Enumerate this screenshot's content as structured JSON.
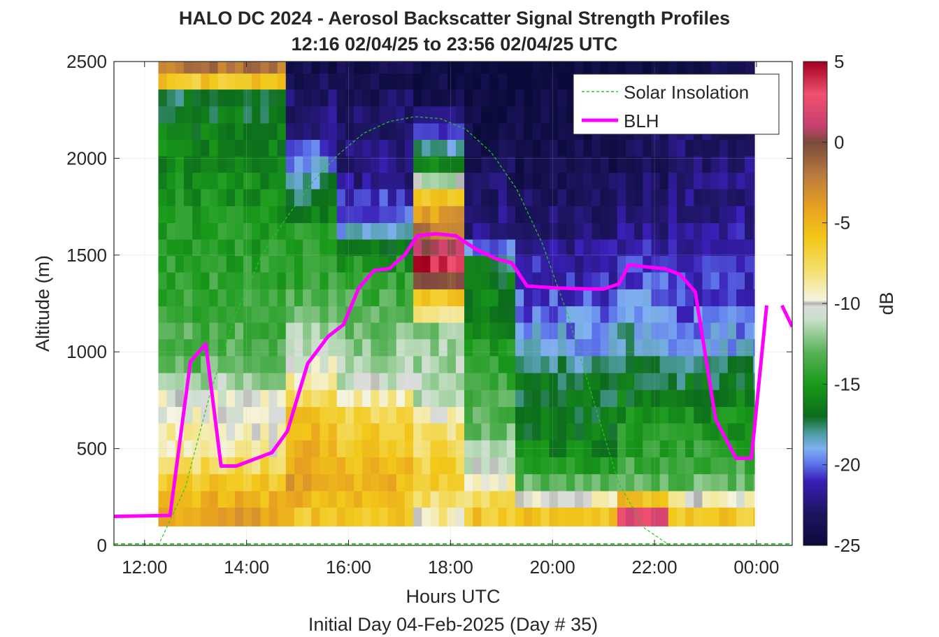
{
  "chart_data": {
    "type": "heatmap",
    "title": "HALO DC 2024 - Aerosol Backscatter Signal Strength Profiles",
    "subtitle": "12:16 02/04/25 to 23:56 02/04/25  UTC",
    "xlabel": "Hours UTC",
    "xlabel2": "Initial Day 04-Feb-2025 (Day # 35)",
    "ylabel": "Altitude (m)",
    "colorbar_label": "dB",
    "xlim": [
      11.4,
      24.7
    ],
    "ylim": [
      0,
      2500
    ],
    "x_ticks": [
      12,
      14,
      16,
      18,
      20,
      22,
      24
    ],
    "x_tick_labels": [
      "12:00",
      "14:00",
      "16:00",
      "18:00",
      "20:00",
      "22:00",
      "00:00"
    ],
    "y_ticks": [
      0,
      500,
      1000,
      1500,
      2000,
      2500
    ],
    "y_tick_labels": [
      "0",
      "500",
      "1000",
      "1500",
      "2000",
      "2500"
    ],
    "colorbar_ticks": [
      5,
      0,
      -5,
      -10,
      -15,
      -20,
      -25
    ],
    "colorbar_tick_labels": [
      "5",
      "0",
      "-5",
      "-10",
      "-15",
      "-20",
      "-25"
    ],
    "colorbar_range": [
      -25,
      5
    ],
    "colormap_stops": [
      {
        "v": -25,
        "c": "#0b0b3b"
      },
      {
        "v": -23,
        "c": "#1d1560"
      },
      {
        "v": -21,
        "c": "#3a1fb8"
      },
      {
        "v": -20,
        "c": "#5a70e8"
      },
      {
        "v": -19,
        "c": "#7fb0f0"
      },
      {
        "v": -18,
        "c": "#4a9a9a"
      },
      {
        "v": -17,
        "c": "#0c6c1c"
      },
      {
        "v": -15,
        "c": "#1a9a1a"
      },
      {
        "v": -13,
        "c": "#59b259"
      },
      {
        "v": -11,
        "c": "#c8e0c8"
      },
      {
        "v": -10.2,
        "c": "#dcdcdc"
      },
      {
        "v": -10,
        "c": "#b0b0b0"
      },
      {
        "v": -9.8,
        "c": "#f4f4e0"
      },
      {
        "v": -8,
        "c": "#f4e070"
      },
      {
        "v": -6,
        "c": "#f2c81a"
      },
      {
        "v": -4,
        "c": "#e8a020"
      },
      {
        "v": -2,
        "c": "#b87a40"
      },
      {
        "v": 0,
        "c": "#7a4a3a"
      },
      {
        "v": 1,
        "c": "#c84070"
      },
      {
        "v": 3,
        "c": "#f05070"
      },
      {
        "v": 5,
        "c": "#a0001c"
      }
    ],
    "time_bin_hours": 0.1667,
    "altitude_bins_m": [
      155,
      240,
      325,
      415,
      500,
      590,
      675,
      760,
      850,
      935,
      1025,
      1110,
      1195,
      1280,
      1370,
      1455,
      1540,
      1625,
      1710,
      1800,
      1885,
      1970,
      2055,
      2140,
      2225,
      2315,
      2400,
      2480
    ],
    "profiles": [
      {
        "t0": 12.27,
        "t1": 14.77,
        "levels": [
          [
            155,
            -4
          ],
          [
            325,
            -6
          ],
          [
            500,
            -9
          ],
          [
            760,
            -10
          ],
          [
            935,
            -13
          ],
          [
            1280,
            -14
          ],
          [
            1710,
            -15
          ],
          [
            2055,
            -16
          ],
          [
            2315,
            -17
          ],
          [
            2400,
            -6
          ],
          [
            2480,
            -2
          ]
        ]
      },
      {
        "t0": 14.77,
        "t1": 15.77,
        "levels": [
          [
            155,
            -6
          ],
          [
            325,
            -4
          ],
          [
            675,
            -6
          ],
          [
            850,
            -9
          ],
          [
            1025,
            -11
          ],
          [
            1370,
            -14
          ],
          [
            1625,
            -15
          ],
          [
            1885,
            -18
          ],
          [
            2140,
            -22
          ],
          [
            2480,
            -24
          ]
        ]
      },
      {
        "t0": 15.77,
        "t1": 17.27,
        "levels": [
          [
            155,
            -6
          ],
          [
            325,
            -5
          ],
          [
            675,
            -7
          ],
          [
            850,
            -11
          ],
          [
            1195,
            -13
          ],
          [
            1455,
            -15
          ],
          [
            1625,
            -19
          ],
          [
            1885,
            -22
          ],
          [
            2225,
            -23
          ],
          [
            2480,
            -24
          ]
        ]
      },
      {
        "t0": 17.27,
        "t1": 18.27,
        "levels": [
          [
            155,
            -9
          ],
          [
            325,
            -6
          ],
          [
            590,
            -8
          ],
          [
            760,
            -11
          ],
          [
            1110,
            -12
          ],
          [
            1280,
            -6
          ],
          [
            1455,
            4
          ],
          [
            1625,
            -2
          ],
          [
            1800,
            -6
          ],
          [
            1970,
            -16
          ],
          [
            2225,
            -23
          ],
          [
            2480,
            -25
          ]
        ]
      },
      {
        "t0": 18.27,
        "t1": 19.27,
        "levels": [
          [
            155,
            -6
          ],
          [
            325,
            -9
          ],
          [
            500,
            -12
          ],
          [
            850,
            -14
          ],
          [
            1195,
            -16
          ],
          [
            1455,
            -17
          ],
          [
            1625,
            -22
          ],
          [
            2055,
            -24
          ],
          [
            2480,
            -25
          ]
        ]
      },
      {
        "t0": 19.27,
        "t1": 21.27,
        "levels": [
          [
            155,
            -6
          ],
          [
            325,
            -13
          ],
          [
            500,
            -16
          ],
          [
            850,
            -17
          ],
          [
            1025,
            -19
          ],
          [
            1195,
            -20
          ],
          [
            1370,
            -21
          ],
          [
            1710,
            -23
          ],
          [
            2055,
            -24
          ],
          [
            2480,
            -25
          ]
        ]
      },
      {
        "t0": 21.27,
        "t1": 22.27,
        "levels": [
          [
            155,
            2
          ],
          [
            325,
            -13
          ],
          [
            590,
            -15
          ],
          [
            850,
            -17
          ],
          [
            1025,
            -18
          ],
          [
            1195,
            -19
          ],
          [
            1455,
            -21
          ],
          [
            1800,
            -23
          ],
          [
            2480,
            -24
          ]
        ]
      },
      {
        "t0": 22.27,
        "t1": 23.96,
        "levels": [
          [
            155,
            -6
          ],
          [
            325,
            -13
          ],
          [
            590,
            -15
          ],
          [
            850,
            -17
          ],
          [
            1025,
            -19
          ],
          [
            1195,
            -20
          ],
          [
            1370,
            -21
          ],
          [
            1710,
            -22
          ],
          [
            2140,
            -23
          ],
          [
            2480,
            -24
          ]
        ]
      }
    ],
    "series": [
      {
        "name": "Solar Insolation",
        "style": "dashed",
        "color": "#22cc22",
        "x": [
          11.4,
          12.27,
          12.8,
          13.3,
          13.8,
          14.3,
          14.8,
          15.3,
          15.8,
          16.3,
          16.8,
          17.3,
          17.8,
          18.3,
          18.8,
          19.3,
          19.8,
          20.3,
          20.8,
          21.3,
          21.8,
          22.3,
          22.4,
          24.7
        ],
        "y": [
          0,
          0,
          300,
          800,
          1200,
          1500,
          1700,
          1880,
          2020,
          2130,
          2190,
          2215,
          2205,
          2150,
          2030,
          1840,
          1560,
          1190,
          750,
          320,
          90,
          0,
          0,
          0
        ]
      },
      {
        "name": "BLH",
        "style": "solid",
        "color": "#ff00ff",
        "x": [
          11.4,
          12.5,
          12.9,
          13.2,
          13.5,
          13.8,
          14.2,
          14.5,
          14.8,
          15.2,
          15.6,
          15.9,
          16.2,
          16.5,
          16.8,
          17.1,
          17.35,
          17.7,
          18.1,
          18.5,
          18.9,
          19.2,
          19.5,
          20.1,
          20.7,
          21.0,
          21.3,
          21.5,
          21.8,
          22.2,
          22.5,
          22.8,
          23.2,
          23.6,
          23.9,
          24.2
        ],
        "y": [
          150,
          155,
          950,
          1040,
          410,
          410,
          450,
          480,
          590,
          940,
          1080,
          1140,
          1330,
          1420,
          1430,
          1500,
          1600,
          1610,
          1600,
          1530,
          1480,
          1460,
          1340,
          1330,
          1325,
          1325,
          1350,
          1450,
          1440,
          1430,
          1400,
          1310,
          650,
          450,
          450,
          1240
        ],
        "x_extra": [
          24.5,
          24.7
        ],
        "y_extra": [
          1240,
          1130
        ]
      }
    ],
    "legend": {
      "placement": "top-right",
      "entries": [
        "Solar Insolation",
        "BLH"
      ]
    },
    "grid": true
  }
}
